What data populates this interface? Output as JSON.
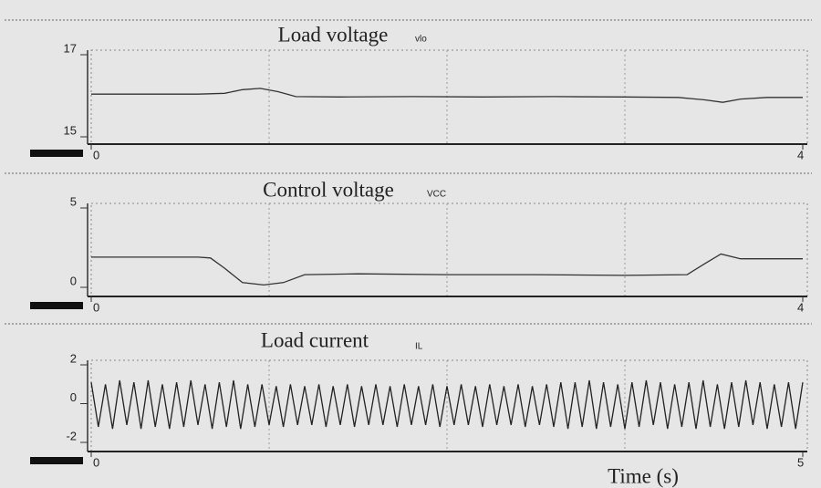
{
  "chart_data": [
    {
      "type": "line",
      "title": "Load voltage",
      "subtitle": "vlo",
      "x": [
        0,
        0.3,
        0.6,
        0.75,
        0.85,
        0.95,
        1.05,
        1.15,
        1.4,
        1.8,
        2.2,
        2.6,
        3.0,
        3.3,
        3.45,
        3.55,
        3.65,
        3.8,
        4
      ],
      "series": [
        {
          "color": "#333333",
          "values": [
            16.04,
            16.04,
            16.04,
            16.06,
            16.15,
            16.18,
            16.1,
            15.98,
            15.97,
            15.98,
            15.97,
            15.98,
            15.97,
            15.96,
            15.9,
            15.84,
            15.92,
            15.96,
            15.96
          ]
        }
      ],
      "xlim": [
        0,
        4
      ],
      "xticks": [
        0,
        4
      ],
      "ylim": [
        15,
        17
      ],
      "yticks": [
        15,
        17
      ]
    },
    {
      "type": "line",
      "title": "Control voltage",
      "subtitle": "VCC",
      "x": [
        0,
        0.3,
        0.6,
        0.67,
        0.75,
        0.85,
        0.97,
        1.08,
        1.2,
        1.5,
        2.0,
        2.5,
        3.0,
        3.35,
        3.45,
        3.54,
        3.65,
        4
      ],
      "series": [
        {
          "color": "#333333",
          "values": [
            1.9,
            1.9,
            1.9,
            1.85,
            1.2,
            0.3,
            0.15,
            0.3,
            0.8,
            0.85,
            0.8,
            0.8,
            0.75,
            0.8,
            1.5,
            2.1,
            1.8,
            1.8
          ]
        }
      ],
      "xlim": [
        0,
        4
      ],
      "xticks": [
        0,
        4
      ],
      "ylim": [
        0,
        5
      ],
      "yticks": [
        0,
        5
      ]
    },
    {
      "type": "line",
      "title": "Load current",
      "subtitle": "IL",
      "x_label": "Time (s)",
      "x": [
        0,
        0.05,
        0.1,
        0.15,
        0.2,
        0.25,
        0.3,
        0.35,
        0.4,
        0.45,
        0.5,
        0.55,
        0.6,
        0.65,
        0.7,
        0.75,
        0.8,
        0.85,
        0.9,
        0.95,
        1.0,
        1.05,
        1.1,
        1.15,
        1.2,
        1.25,
        1.3,
        1.35,
        1.4,
        1.45,
        1.5,
        1.55,
        1.6,
        1.65,
        1.7,
        1.75,
        1.8,
        1.85,
        1.9,
        1.95,
        2.0,
        2.05,
        2.1,
        2.15,
        2.2,
        2.25,
        2.3,
        2.35,
        2.4,
        2.45,
        2.5,
        2.55,
        2.6,
        2.65,
        2.7,
        2.75,
        2.8,
        2.85,
        2.9,
        2.95,
        3.0,
        3.05,
        3.1,
        3.15,
        3.2,
        3.25,
        3.3,
        3.35,
        3.4,
        3.45,
        3.5,
        3.55,
        3.6,
        3.65,
        3.7,
        3.75,
        3.8,
        3.85,
        3.9,
        3.95,
        4.0,
        4.05,
        4.1,
        4.15,
        4.2,
        4.25,
        4.3,
        4.35,
        4.4,
        4.45,
        4.5,
        4.55,
        4.6,
        4.65,
        4.7,
        4.75,
        4.8,
        4.85,
        4.9,
        4.95,
        5.0
      ],
      "series": [
        {
          "color": "#222222",
          "values": [
            1.1,
            -1.2,
            1.0,
            -1.3,
            1.2,
            -1.1,
            1.1,
            -1.3,
            1.2,
            -1.2,
            1.0,
            -1.3,
            1.1,
            -1.2,
            1.2,
            -1.1,
            1.0,
            -1.3,
            1.1,
            -1.2,
            1.2,
            -1.3,
            1.0,
            -1.2,
            1.0,
            -1.1,
            0.9,
            -1.2,
            1.0,
            -1.1,
            0.9,
            -1.1,
            1.0,
            -1.2,
            0.9,
            -1.1,
            1.0,
            -1.2,
            0.9,
            -1.1,
            1.0,
            -1.1,
            0.9,
            -1.2,
            1.0,
            -1.1,
            0.9,
            -1.1,
            1.0,
            -1.2,
            0.9,
            -1.1,
            1.0,
            -1.1,
            0.9,
            -1.2,
            1.0,
            -1.1,
            0.9,
            -1.1,
            1.0,
            -1.2,
            0.9,
            -1.1,
            1.0,
            -1.2,
            1.1,
            -1.3,
            1.1,
            -1.2,
            1.2,
            -1.3,
            1.1,
            -1.2,
            1.0,
            -1.3,
            1.1,
            -1.2,
            1.2,
            -1.1,
            1.1,
            -1.3,
            1.0,
            -1.2,
            1.1,
            -1.3,
            1.2,
            -1.2,
            1.0,
            -1.3,
            1.1,
            -1.2,
            1.2,
            -1.1,
            1.1,
            -1.3,
            1.0,
            -1.2,
            1.1,
            -1.3,
            1.1
          ]
        }
      ],
      "xlim": [
        0,
        5
      ],
      "xticks": [
        0,
        5
      ],
      "ylim": [
        -2,
        2
      ],
      "yticks": [
        -2,
        0,
        2
      ]
    }
  ]
}
